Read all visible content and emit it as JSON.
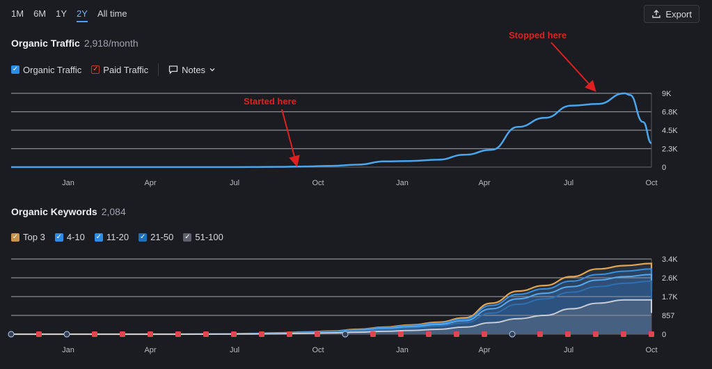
{
  "range_tabs": [
    {
      "label": "1M",
      "active": false
    },
    {
      "label": "6M",
      "active": false
    },
    {
      "label": "1Y",
      "active": false
    },
    {
      "label": "2Y",
      "active": true
    },
    {
      "label": "All time",
      "active": false
    }
  ],
  "export_label": "Export",
  "traffic": {
    "title": "Organic Traffic",
    "value": "2,918/month",
    "legend": [
      {
        "label": "Organic Traffic",
        "color": "#2f8ce6"
      },
      {
        "label": "Paid Traffic",
        "color": "#c0392b"
      }
    ],
    "notes_label": "Notes"
  },
  "keywords": {
    "title": "Organic Keywords",
    "value": "2,084",
    "legend": [
      {
        "label": "Top 3",
        "color": "#c8944b"
      },
      {
        "label": "4-10",
        "color": "#2f8ce6"
      },
      {
        "label": "11-20",
        "color": "#2f8ce6"
      },
      {
        "label": "21-50",
        "color": "#1f6fb8"
      },
      {
        "label": "51-100",
        "color": "#5d616b"
      }
    ]
  },
  "annotations": {
    "started": "Started here",
    "stopped": "Stopped here"
  },
  "colors": {
    "annotation": "#e02020",
    "organic_line": "#49a6ee",
    "top3_line": "#e5a54f",
    "grid": "#8a8d95"
  },
  "chart_data": [
    {
      "type": "line",
      "xlabel": "",
      "ylabel": "",
      "x_ticks": [
        "Jan",
        "Apr",
        "Jul",
        "Oct",
        "Jan",
        "Apr",
        "Jul",
        "Oct"
      ],
      "y_ticks": [
        "0",
        "2.3K",
        "4.5K",
        "6.8K",
        "9K"
      ],
      "ylim": [
        0,
        9000
      ],
      "grid": true,
      "series": [
        {
          "name": "Organic Traffic",
          "x": [
            0,
            1,
            2,
            3,
            4,
            5,
            6,
            7,
            8,
            9,
            10,
            11,
            12,
            13,
            14,
            15,
            16,
            17,
            18,
            19,
            20,
            21,
            22,
            23
          ],
          "y": [
            0,
            0,
            0,
            0,
            0,
            0,
            0,
            0,
            0,
            10,
            30,
            80,
            150,
            300,
            700,
            750,
            900,
            1500,
            2100,
            4900,
            6000,
            7500,
            7700,
            9000
          ]
        }
      ]
    },
    {
      "type": "area",
      "xlabel": "",
      "ylabel": "",
      "x_ticks": [
        "Jan",
        "Apr",
        "Jul",
        "Oct",
        "Jan",
        "Apr",
        "Jul",
        "Oct"
      ],
      "y_ticks": [
        "0",
        "857",
        "1.7K",
        "2.6K",
        "3.4K"
      ],
      "ylim": [
        0,
        3400
      ],
      "grid": true,
      "series": [
        {
          "name": "Top 3",
          "x": [
            0,
            2,
            4,
            6,
            8,
            9,
            10,
            11,
            12,
            13,
            14,
            15,
            16,
            17,
            18,
            19,
            20,
            21,
            22,
            23,
            24
          ],
          "y": [
            0,
            0,
            0,
            0,
            10,
            30,
            60,
            100,
            140,
            220,
            320,
            420,
            540,
            740,
            1400,
            1950,
            2200,
            2600,
            2950,
            3100,
            3200
          ]
        },
        {
          "name": "4-10",
          "x": [
            0,
            2,
            4,
            6,
            8,
            9,
            10,
            11,
            12,
            13,
            14,
            15,
            16,
            17,
            18,
            19,
            20,
            21,
            22,
            23,
            24
          ],
          "y": [
            0,
            0,
            0,
            0,
            10,
            25,
            50,
            90,
            130,
            200,
            300,
            390,
            500,
            690,
            1300,
            1800,
            2050,
            2400,
            2700,
            2850,
            2950
          ]
        },
        {
          "name": "11-20",
          "x": [
            0,
            2,
            4,
            6,
            8,
            9,
            10,
            11,
            12,
            13,
            14,
            15,
            16,
            17,
            18,
            19,
            20,
            21,
            22,
            23,
            24
          ],
          "y": [
            0,
            0,
            0,
            0,
            8,
            20,
            40,
            75,
            110,
            170,
            260,
            340,
            440,
            610,
            1150,
            1600,
            1850,
            2150,
            2450,
            2600,
            2700
          ]
        },
        {
          "name": "21-50",
          "x": [
            0,
            2,
            4,
            6,
            8,
            9,
            10,
            11,
            12,
            13,
            14,
            15,
            16,
            17,
            18,
            19,
            20,
            21,
            22,
            23,
            24
          ],
          "y": [
            0,
            0,
            0,
            0,
            6,
            15,
            30,
            60,
            90,
            140,
            210,
            280,
            370,
            520,
            950,
            1350,
            1600,
            1900,
            2150,
            2300,
            2400
          ]
        },
        {
          "name": "51-100",
          "x": [
            0,
            2,
            4,
            6,
            8,
            9,
            10,
            11,
            12,
            13,
            14,
            15,
            16,
            17,
            18,
            19,
            20,
            21,
            22,
            23,
            24
          ],
          "y": [
            0,
            0,
            0,
            0,
            4,
            10,
            20,
            40,
            60,
            90,
            130,
            170,
            220,
            320,
            520,
            700,
            850,
            1150,
            1400,
            1550,
            1550
          ]
        }
      ]
    }
  ]
}
